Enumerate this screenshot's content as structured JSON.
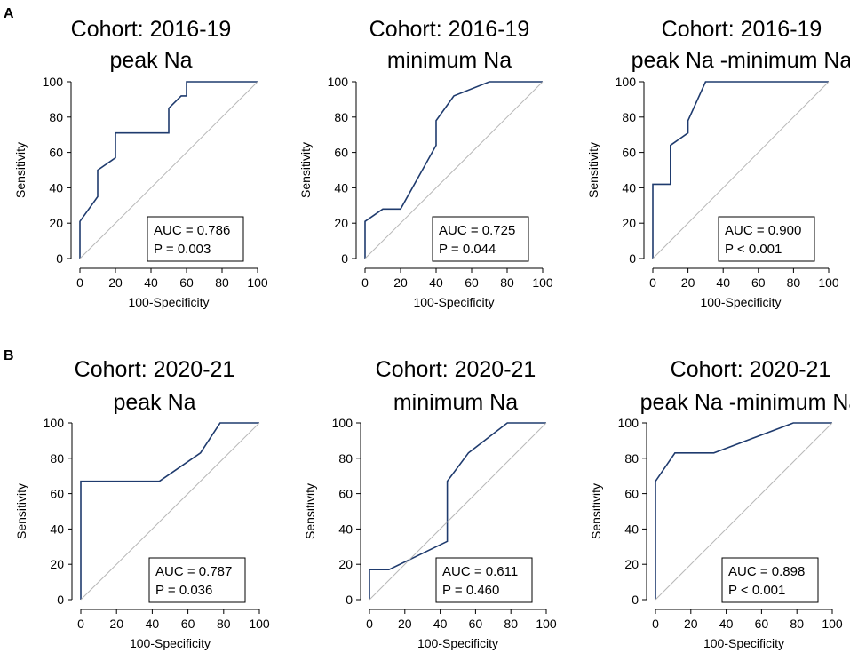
{
  "colors": {
    "roc_line": "#1f3b6e",
    "reference_line": "#b8b8b8",
    "axis": "#000000",
    "background": "#ffffff"
  },
  "panel_labels": [
    "A",
    "B"
  ],
  "chart_data": [
    {
      "type": "line",
      "panel": "A",
      "title": [
        "Cohort: 2016-19",
        "peak Na"
      ],
      "xlabel": "100-Specificity",
      "ylabel": "Sensitivity",
      "xlim": [
        0,
        100
      ],
      "ylim": [
        0,
        100
      ],
      "xticks": [
        0,
        20,
        40,
        60,
        80,
        100
      ],
      "yticks": [
        0,
        20,
        40,
        60,
        80,
        100
      ],
      "annotation": [
        "AUC = 0.786",
        "P = 0.003"
      ],
      "series": [
        {
          "name": "ROC",
          "x": [
            0,
            0,
            10,
            10,
            20,
            20,
            50,
            50,
            57,
            60,
            60,
            100
          ],
          "y": [
            0,
            21,
            35,
            50,
            57,
            71,
            71,
            85,
            92,
            92,
            100,
            100
          ]
        },
        {
          "name": "Reference",
          "x": [
            0,
            100
          ],
          "y": [
            0,
            100
          ]
        }
      ]
    },
    {
      "type": "line",
      "panel": "A",
      "title": [
        "Cohort: 2016-19",
        "minimum Na"
      ],
      "xlabel": "100-Specificity",
      "ylabel": "Sensitivity",
      "xlim": [
        0,
        100
      ],
      "ylim": [
        0,
        100
      ],
      "xticks": [
        0,
        20,
        40,
        60,
        80,
        100
      ],
      "yticks": [
        0,
        20,
        40,
        60,
        80,
        100
      ],
      "annotation": [
        "AUC = 0.725",
        "P = 0.044"
      ],
      "series": [
        {
          "name": "ROC",
          "x": [
            0,
            0,
            10,
            20,
            40,
            40,
            50,
            70,
            100
          ],
          "y": [
            0,
            21,
            28,
            28,
            64,
            78,
            92,
            100,
            100
          ]
        },
        {
          "name": "Reference",
          "x": [
            0,
            100
          ],
          "y": [
            0,
            100
          ]
        }
      ]
    },
    {
      "type": "line",
      "panel": "A",
      "title": [
        "Cohort: 2016-19",
        "peak Na -minimum Na"
      ],
      "xlabel": "100-Specificity",
      "ylabel": "Sensitivity",
      "xlim": [
        0,
        100
      ],
      "ylim": [
        0,
        100
      ],
      "xticks": [
        0,
        20,
        40,
        60,
        80,
        100
      ],
      "yticks": [
        0,
        20,
        40,
        60,
        80,
        100
      ],
      "annotation": [
        "AUC = 0.900",
        "P < 0.001"
      ],
      "series": [
        {
          "name": "ROC",
          "x": [
            0,
            0,
            10,
            10,
            20,
            20,
            30,
            100
          ],
          "y": [
            0,
            42,
            42,
            64,
            71,
            78,
            100,
            100
          ]
        },
        {
          "name": "Reference",
          "x": [
            0,
            100
          ],
          "y": [
            0,
            100
          ]
        }
      ]
    },
    {
      "type": "line",
      "panel": "B",
      "title": [
        "Cohort: 2020-21",
        "peak Na"
      ],
      "xlabel": "100-Specificity",
      "ylabel": "Sensitivity",
      "xlim": [
        0,
        100
      ],
      "ylim": [
        0,
        100
      ],
      "xticks": [
        0,
        20,
        40,
        60,
        80,
        100
      ],
      "yticks": [
        0,
        20,
        40,
        60,
        80,
        100
      ],
      "annotation": [
        "AUC = 0.787",
        "P = 0.036"
      ],
      "series": [
        {
          "name": "ROC",
          "x": [
            0,
            0,
            44,
            67,
            78,
            100
          ],
          "y": [
            0,
            67,
            67,
            83,
            100,
            100
          ]
        },
        {
          "name": "Reference",
          "x": [
            0,
            100
          ],
          "y": [
            0,
            100
          ]
        }
      ]
    },
    {
      "type": "line",
      "panel": "B",
      "title": [
        "Cohort: 2020-21",
        "minimum Na"
      ],
      "xlabel": "100-Specificity",
      "ylabel": "Sensitivity",
      "xlim": [
        0,
        100
      ],
      "ylim": [
        0,
        100
      ],
      "xticks": [
        0,
        20,
        40,
        60,
        80,
        100
      ],
      "yticks": [
        0,
        20,
        40,
        60,
        80,
        100
      ],
      "annotation": [
        "AUC = 0.611",
        "P = 0.460"
      ],
      "series": [
        {
          "name": "ROC",
          "x": [
            0,
            0,
            11,
            44,
            44,
            56,
            78,
            100
          ],
          "y": [
            0,
            17,
            17,
            33,
            67,
            83,
            100,
            100
          ]
        },
        {
          "name": "Reference",
          "x": [
            0,
            100
          ],
          "y": [
            0,
            100
          ]
        }
      ]
    },
    {
      "type": "line",
      "panel": "B",
      "title": [
        "Cohort: 2020-21",
        "peak Na -minimum Na"
      ],
      "xlabel": "100-Specificity",
      "ylabel": "Sensitivity",
      "xlim": [
        0,
        100
      ],
      "ylim": [
        0,
        100
      ],
      "xticks": [
        0,
        20,
        40,
        60,
        80,
        100
      ],
      "yticks": [
        0,
        20,
        40,
        60,
        80,
        100
      ],
      "annotation": [
        "AUC = 0.898",
        "P < 0.001"
      ],
      "series": [
        {
          "name": "ROC",
          "x": [
            0,
            0,
            11,
            33,
            78,
            100
          ],
          "y": [
            0,
            67,
            83,
            83,
            100,
            100
          ]
        },
        {
          "name": "Reference",
          "x": [
            0,
            100
          ],
          "y": [
            0,
            100
          ]
        }
      ]
    }
  ]
}
